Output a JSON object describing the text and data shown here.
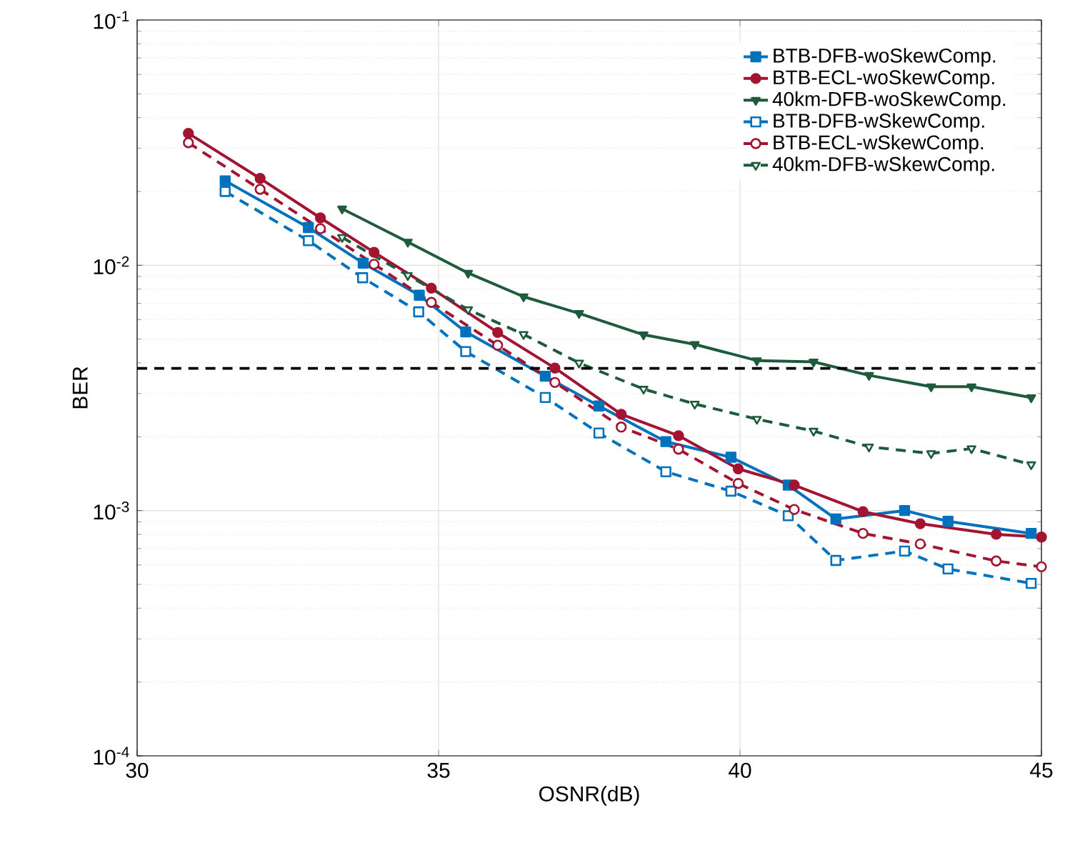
{
  "chart_data": {
    "type": "line",
    "xlabel": "OSNR(dB)",
    "ylabel": "BER",
    "log": "y",
    "grid": true,
    "legend": "top right",
    "xlim": [
      30,
      45
    ],
    "xticks": [
      30,
      35,
      40,
      45
    ],
    "ylim": [
      0.0001,
      0.1
    ],
    "yticks": [
      {
        "value": 0.0001,
        "label": "10$^{-4}$"
      },
      {
        "value": 0.001,
        "label": "10$^{-3}$"
      },
      {
        "value": 0.01,
        "label": "10$^{-2}$"
      },
      {
        "value": 0.1,
        "label": "10$^{-1}$"
      }
    ],
    "ref_lines": [
      {
        "axis": "y",
        "value": 0.0038,
        "label": null,
        "color": "#000000",
        "line_style": "dashed"
      }
    ],
    "series": [
      {
        "name": "BTB-DFB-woSkewComp.",
        "color": "#0072bd",
        "marker": "square",
        "line_style": "solid",
        "x": [
          31.46,
          32.84,
          33.75,
          34.68,
          35.45,
          36.77,
          37.66,
          38.77,
          39.85,
          40.8,
          41.59,
          42.73,
          43.45,
          44.83
        ],
        "values": [
          0.0221,
          0.01425,
          0.0102,
          0.00755,
          0.00535,
          0.00353,
          0.00267,
          0.00191,
          0.00165,
          0.00127,
          0.000924,
          0.001,
          0.000904,
          0.000807
        ]
      },
      {
        "name": "BTB-ECL-woSkewComp.",
        "color": "#a2142f",
        "marker": "circle",
        "line_style": "solid",
        "x": [
          30.85,
          32.04,
          33.04,
          33.93,
          34.88,
          35.98,
          36.93,
          38.03,
          38.98,
          39.97,
          40.9,
          42.04,
          42.99,
          44.25,
          45
        ],
        "values": [
          0.0345,
          0.0226,
          0.0156,
          0.0113,
          0.00807,
          0.00532,
          0.00381,
          0.00247,
          0.00202,
          0.00148,
          0.00127,
          0.00099,
          0.000884,
          0.0008,
          0.00078
        ]
      },
      {
        "name": "40km-DFB-woSkewComp.",
        "color": "#1e5b3c",
        "marker": "triangle",
        "line_style": "solid",
        "x": [
          33.4,
          34.49,
          35.49,
          36.41,
          37.33,
          38.4,
          39.25,
          40.28,
          41.22,
          42.14,
          43.17,
          43.84,
          44.83
        ],
        "values": [
          0.017,
          0.01245,
          0.0093,
          0.00745,
          0.00637,
          0.00521,
          0.00476,
          0.00409,
          0.00404,
          0.00356,
          0.0032,
          0.0032,
          0.00289
        ]
      },
      {
        "name": "BTB-DFB-wSkewComp.",
        "color": "#0072bd",
        "marker": "square",
        "line_style": "dashed",
        "x": [
          31.46,
          32.84,
          33.74,
          34.67,
          35.45,
          36.77,
          37.66,
          38.77,
          39.85,
          40.8,
          41.59,
          42.73,
          43.45,
          44.83
        ],
        "values": [
          0.02,
          0.0126,
          0.0089,
          0.00646,
          0.00445,
          0.00289,
          0.00207,
          0.00144,
          0.0012,
          0.000953,
          0.000626,
          0.000684,
          0.000578,
          0.000505
        ]
      },
      {
        "name": "BTB-ECL-wSkewComp.",
        "color": "#a2142f",
        "marker": "circle",
        "line_style": "dashed",
        "x": [
          30.85,
          32.04,
          33.04,
          33.93,
          34.88,
          35.98,
          36.93,
          38.03,
          38.98,
          39.97,
          40.9,
          42.04,
          42.99,
          44.25,
          45
        ],
        "values": [
          0.0316,
          0.0204,
          0.0141,
          0.0101,
          0.00706,
          0.00472,
          0.00333,
          0.00219,
          0.00178,
          0.00129,
          0.00101,
          0.000807,
          0.000731,
          0.000623,
          0.00059
        ]
      },
      {
        "name": "40km-DFB-wSkewComp.",
        "color": "#1e5b3c",
        "marker": "triangle",
        "line_style": "dashed",
        "x": [
          33.4,
          34.49,
          35.49,
          36.41,
          37.33,
          38.4,
          39.25,
          40.28,
          41.22,
          42.14,
          43.17,
          43.84,
          44.83
        ],
        "values": [
          0.013,
          0.0091,
          0.0066,
          0.00523,
          0.004,
          0.00313,
          0.00272,
          0.00236,
          0.00211,
          0.00182,
          0.00171,
          0.00179,
          0.00154
        ]
      }
    ]
  }
}
